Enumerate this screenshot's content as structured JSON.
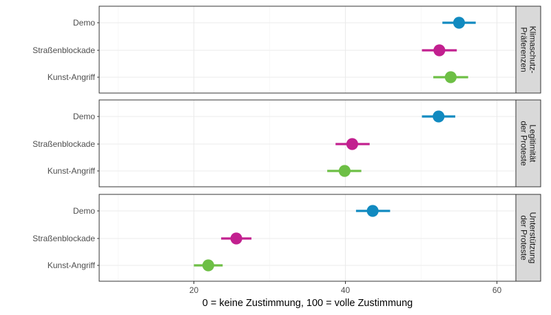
{
  "chart_data": {
    "type": "scatter",
    "subtype": "point-range faceted",
    "xlabel": "0 = keine Zustimmung, 100 = volle Zustimmung",
    "xlim": [
      7.5,
      62.5
    ],
    "xticks": [
      20,
      40,
      60
    ],
    "categories": [
      "Demo",
      "Straßenblockade",
      "Kunst-Angriff"
    ],
    "colors": {
      "Demo": "#118ac0",
      "Straßenblockade": "#c2208f",
      "Kunst-Angriff": "#6dbf45"
    },
    "grid": true,
    "legend": "none",
    "panels": [
      {
        "strip": [
          "Klimaschutz-",
          "Präferenzen"
        ],
        "points": [
          {
            "category": "Demo",
            "value": 55.0,
            "low": 52.8,
            "high": 57.2
          },
          {
            "category": "Straßenblockade",
            "value": 52.4,
            "low": 50.1,
            "high": 54.7
          },
          {
            "category": "Kunst-Angriff",
            "value": 53.9,
            "low": 51.6,
            "high": 56.2
          }
        ]
      },
      {
        "strip": [
          "Legitimität",
          "der Proteste"
        ],
        "points": [
          {
            "category": "Demo",
            "value": 52.3,
            "low": 50.1,
            "high": 54.5
          },
          {
            "category": "Straßenblockade",
            "value": 40.9,
            "low": 38.7,
            "high": 43.2
          },
          {
            "category": "Kunst-Angriff",
            "value": 39.9,
            "low": 37.6,
            "high": 42.1
          }
        ]
      },
      {
        "strip": [
          "Unterstützung",
          "der Proteste"
        ],
        "points": [
          {
            "category": "Demo",
            "value": 43.6,
            "low": 41.4,
            "high": 45.9
          },
          {
            "category": "Straßenblockade",
            "value": 25.6,
            "low": 23.6,
            "high": 27.6
          },
          {
            "category": "Kunst-Angriff",
            "value": 21.9,
            "low": 20.0,
            "high": 23.8
          }
        ]
      }
    ]
  }
}
